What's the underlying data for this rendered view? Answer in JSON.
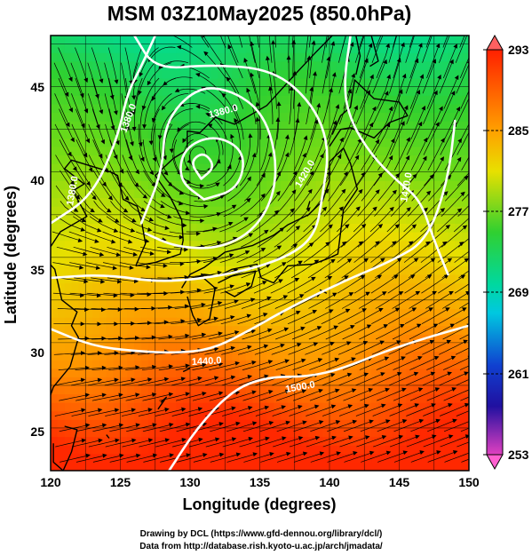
{
  "title": "MSM 03Z10May2025 (850.0hPa)",
  "x_axis": {
    "label": "Longitude (degrees)",
    "ticks": [
      "120",
      "125",
      "130",
      "135",
      "140",
      "145",
      "150"
    ]
  },
  "y_axis": {
    "label": "Latitude  (degrees)",
    "ticks": [
      "25",
      "30",
      "35",
      "40",
      "45"
    ]
  },
  "colorbar": {
    "ticks": [
      "293",
      "285",
      "277",
      "269",
      "261",
      "253"
    ]
  },
  "contour_labels": [
    "1380.0",
    "1380.0",
    "1380.0",
    "1410.0",
    "1440.0",
    "1420.0",
    "1500.0"
  ],
  "credits": {
    "line1": "Drawing by DCL (https://www.gfd-dennou.org/library/dcl/)",
    "line2": "Data from http://database.rish.kyoto-u.ac.jp/arch/jmadata/"
  },
  "chart_data": {
    "type": "heatmap",
    "field": "temperature (K) at 850 hPa, shaded; streamlines of wind; white geopotential height contours",
    "title": "MSM 03Z10May2025 (850.0hPa)",
    "xlabel": "Longitude (degrees)",
    "ylabel": "Latitude  (degrees)",
    "xlim": [
      120,
      150
    ],
    "ylim": [
      22.5,
      48
    ],
    "color_range": [
      253,
      293
    ],
    "colorbar_ticks": [
      253,
      261,
      269,
      277,
      285,
      293
    ],
    "colors": {
      "cold": "#e040c0",
      "cool": "#1030c0",
      "mid": "#00d0d0",
      "green": "#30d030",
      "yellow": "#e8e000",
      "warm": "#ff2000"
    },
    "contours_m": [
      1380,
      1410,
      1420,
      1440,
      1500
    ],
    "low_center": {
      "lon": 131,
      "lat": 40.3
    }
  }
}
